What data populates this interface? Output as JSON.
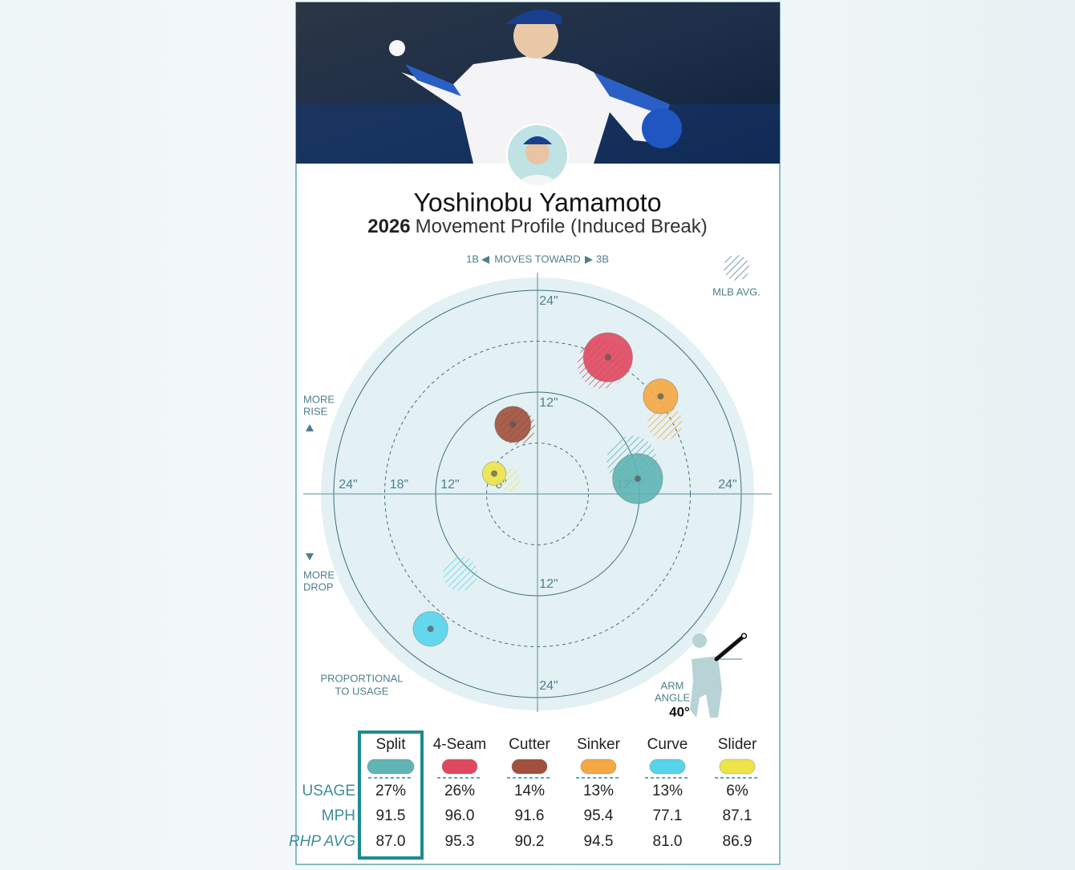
{
  "header": {
    "player": "Yoshinobu Yamamoto",
    "year": "2026",
    "subtitle": "Movement Profile (Induced Break)"
  },
  "chart_data": {
    "type": "movement",
    "x_label_left": "1B",
    "x_label_mid": "MOVES TOWARD",
    "x_label_right": "3B",
    "legend_avg": "MLB AVG.",
    "rise_label": [
      "MORE",
      "RISE"
    ],
    "drop_label": [
      "MORE",
      "DROP"
    ],
    "size_note": [
      "PROPORTIONAL",
      "TO USAGE"
    ],
    "rlim": [
      0,
      24
    ],
    "rticks": [
      {
        "value": 6,
        "label": "6\""
      },
      {
        "value": 12,
        "label": "12\""
      },
      {
        "value": 18,
        "label": "18\""
      },
      {
        "value": 24,
        "label": "24\""
      }
    ],
    "series": [
      {
        "name": "Split",
        "color": "#5fb4b4",
        "x": 11.8,
        "y": 1.8,
        "avg_x": 11.1,
        "avg_y": 3.9,
        "usage": 27,
        "usage_label": "27%",
        "mph": "91.5",
        "rhp_avg": "87.0"
      },
      {
        "name": "4-Seam",
        "color": "#e0485f",
        "x": 8.3,
        "y": 16.1,
        "avg_x": 7.6,
        "avg_y": 15.3,
        "usage": 26,
        "usage_label": "26%",
        "mph": "96.0",
        "rhp_avg": "95.3"
      },
      {
        "name": "Cutter",
        "color": "#a0503c",
        "x": -2.9,
        "y": 8.2,
        "avg_x": -2.4,
        "avg_y": 7.9,
        "usage": 14,
        "usage_label": "14%",
        "mph": "91.6",
        "rhp_avg": "90.2"
      },
      {
        "name": "Sinker",
        "color": "#f5a742",
        "x": 14.5,
        "y": 11.5,
        "avg_x": 15.0,
        "avg_y": 8.4,
        "usage": 13,
        "usage_label": "13%",
        "mph": "95.4",
        "rhp_avg": "94.5"
      },
      {
        "name": "Curve",
        "color": "#56d4ec",
        "x": -12.6,
        "y": -15.9,
        "avg_x": -9.1,
        "avg_y": -9.4,
        "usage": 13,
        "usage_label": "13%",
        "mph": "77.1",
        "rhp_avg": "81.0"
      },
      {
        "name": "Slider",
        "color": "#ede44a",
        "x": -5.1,
        "y": 2.4,
        "avg_x": -3.4,
        "avg_y": 1.7,
        "usage": 6,
        "usage_label": "6%",
        "mph": "87.1",
        "rhp_avg": "86.9"
      }
    ],
    "arm_angle": {
      "label": [
        "ARM",
        "ANGLE"
      ],
      "value": 40,
      "value_label": "40°"
    }
  },
  "table": {
    "row_labels": [
      "USAGE",
      "MPH",
      "RHP AVG"
    ]
  }
}
